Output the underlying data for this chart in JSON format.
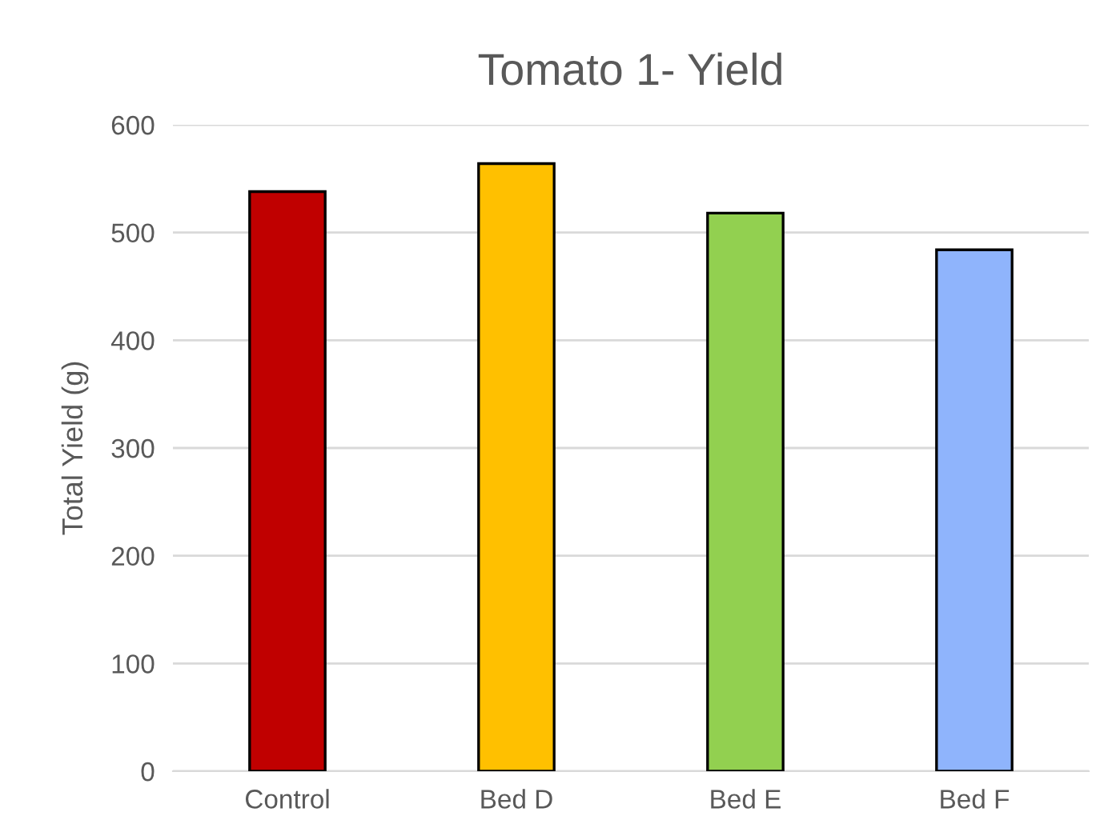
{
  "chart_data": {
    "type": "bar",
    "title": "Tomato 1- Yield",
    "ylabel": "Total Yield (g)",
    "categories": [
      "Control",
      "Bed D",
      "Bed E",
      "Bed F"
    ],
    "values": [
      538,
      564,
      518,
      484
    ],
    "colors": [
      "#c00000",
      "#ffc000",
      "#92d050",
      "#8fb4fc"
    ],
    "ylim": [
      0,
      600
    ],
    "yticks": [
      0,
      100,
      200,
      300,
      400,
      500,
      600
    ],
    "grid": "y"
  }
}
